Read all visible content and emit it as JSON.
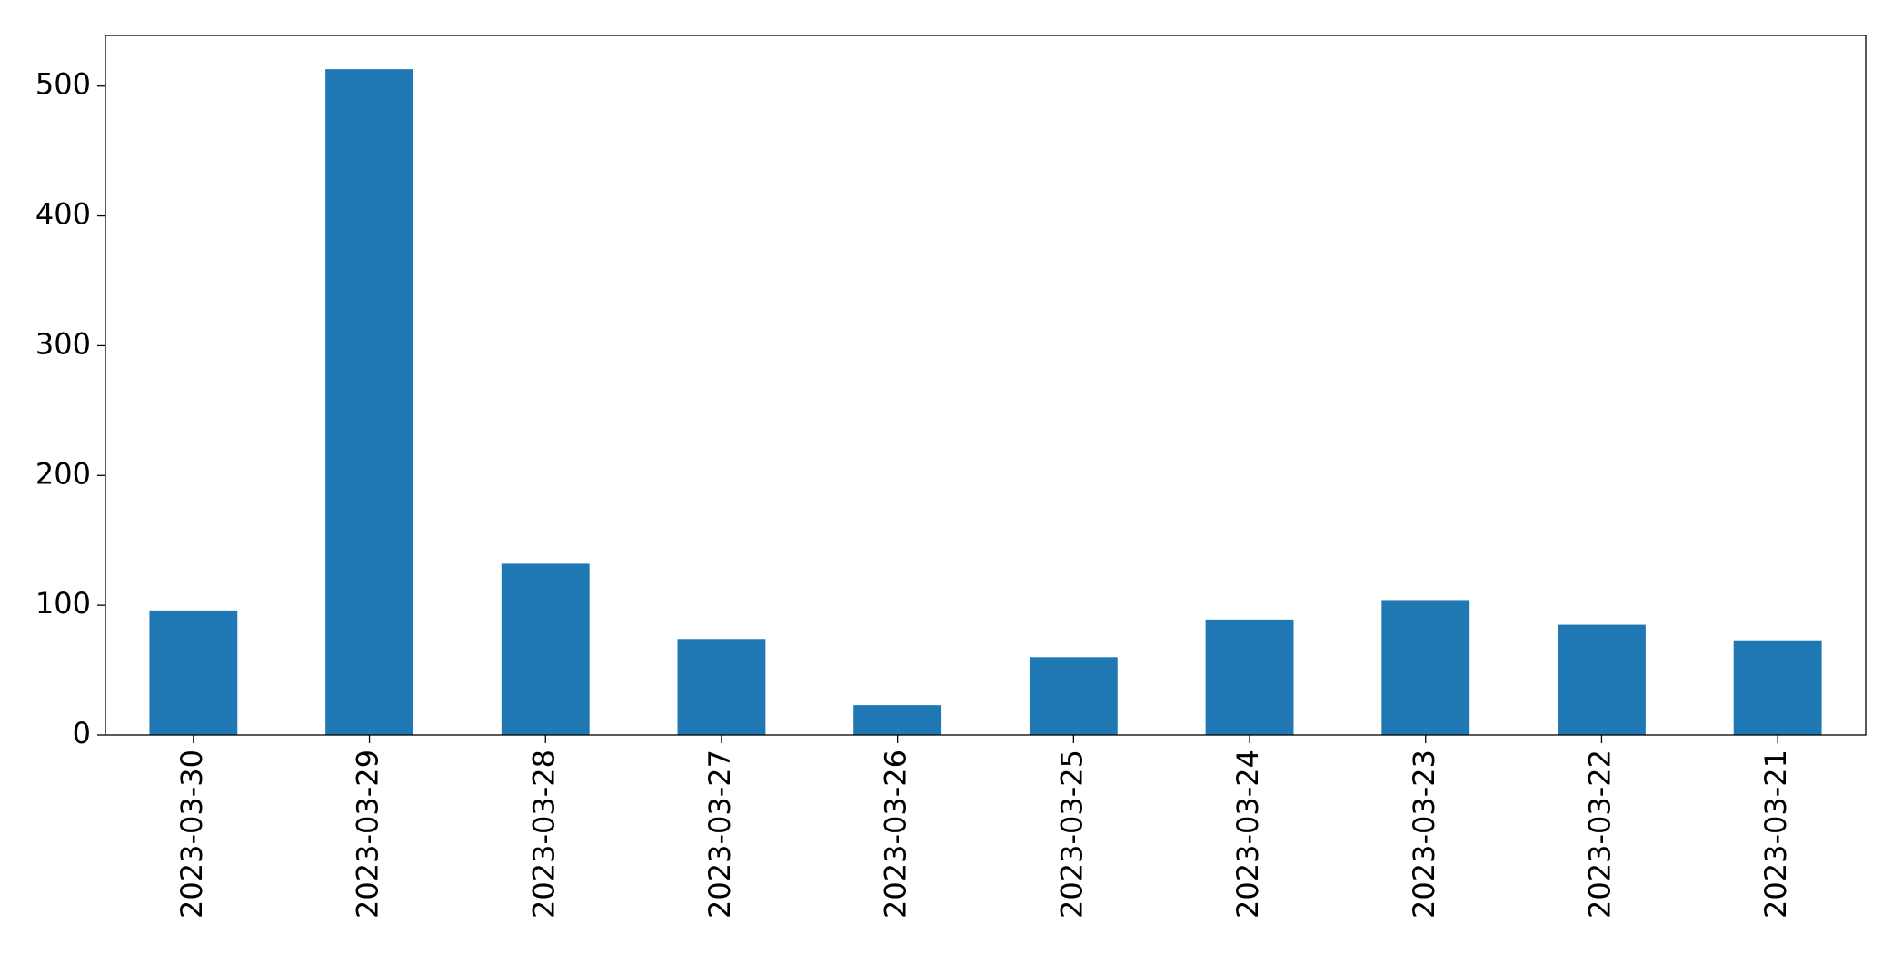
{
  "chart_data": {
    "type": "bar",
    "categories": [
      "2023-03-30",
      "2023-03-29",
      "2023-03-28",
      "2023-03-27",
      "2023-03-26",
      "2023-03-25",
      "2023-03-24",
      "2023-03-23",
      "2023-03-22",
      "2023-03-21"
    ],
    "values": [
      96,
      513,
      132,
      74,
      23,
      60,
      89,
      104,
      85,
      73
    ],
    "color": "#1f77b4",
    "ylim": [
      0,
      539
    ],
    "yticks": [
      0,
      100,
      200,
      300,
      400,
      500
    ],
    "grid": false
  }
}
